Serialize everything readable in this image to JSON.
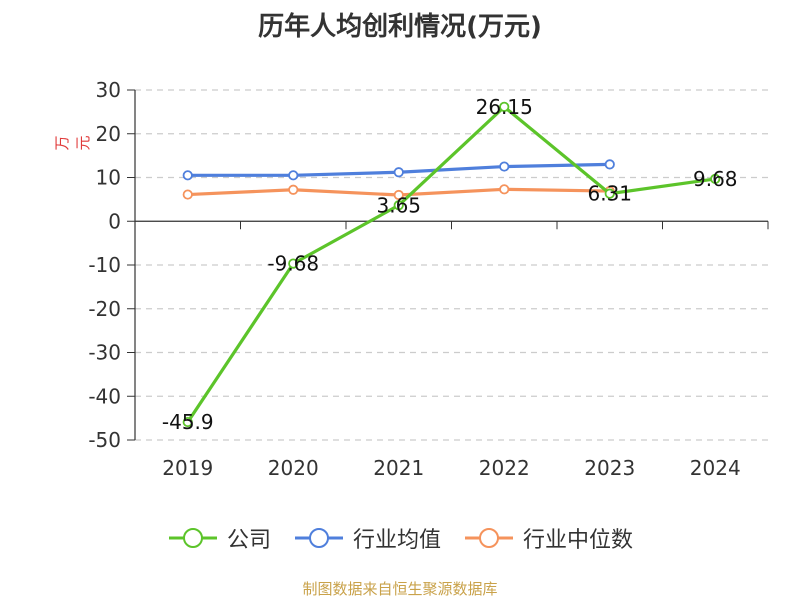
{
  "title": "历年人均创利情况(万元)",
  "source": "制图数据来自恒生聚源数据库",
  "chart_data": {
    "type": "line",
    "title": "历年人均创利情况(万元)",
    "ylabel": "万元",
    "xlabel": "",
    "categories": [
      "2019",
      "2020",
      "2021",
      "2022",
      "2023",
      "2024"
    ],
    "ylim": [
      -50,
      30
    ],
    "yticks": [
      30,
      20,
      10,
      0,
      -10,
      -20,
      -30,
      -40,
      -50
    ],
    "grid": true,
    "legend_position": "bottom",
    "series": [
      {
        "name": "公司",
        "color": "#5cc42a",
        "values": [
          -45.9,
          -9.68,
          3.65,
          26.15,
          6.31,
          9.68
        ],
        "labels": [
          "-45.9",
          "-9.68",
          "3.65",
          "26.15",
          "6.31",
          "9.68"
        ]
      },
      {
        "name": "行业均值",
        "color": "#4f7fdc",
        "values": [
          10.5,
          10.5,
          11.2,
          12.5,
          13.0,
          null
        ]
      },
      {
        "name": "行业中位数",
        "color": "#f5935c",
        "values": [
          6.1,
          7.2,
          6.0,
          7.3,
          6.9,
          null
        ]
      }
    ]
  }
}
